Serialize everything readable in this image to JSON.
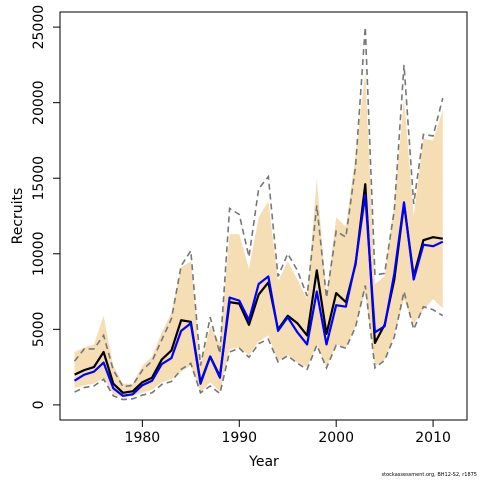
{
  "chart_data": {
    "type": "line",
    "title": "",
    "xlabel": "Year",
    "ylabel": "Recruits",
    "xlim": [
      1971.5,
      2013.5
    ],
    "ylim": [
      -1000,
      26000
    ],
    "x_ticks": [
      1980,
      1990,
      2000,
      2010
    ],
    "y_ticks": [
      0,
      5000,
      10000,
      15000,
      20000,
      25000
    ],
    "grid": false,
    "legend": "none",
    "x": [
      1973,
      1974,
      1975,
      1976,
      1977,
      1978,
      1979,
      1980,
      1981,
      1982,
      1983,
      1984,
      1985,
      1986,
      1987,
      1988,
      1989,
      1990,
      1991,
      1992,
      1993,
      1994,
      1995,
      1996,
      1997,
      1998,
      1999,
      2000,
      2001,
      2002,
      2003,
      2004,
      2005,
      2006,
      2007,
      2008,
      2009,
      2010,
      2011
    ],
    "series": [
      {
        "role": "band",
        "color": "#f5deb3",
        "lower": [
          1100,
          1300,
          1400,
          1800,
          700,
          500,
          600,
          800,
          1000,
          1500,
          1700,
          2200,
          2600,
          800,
          1500,
          900,
          3700,
          3800,
          3300,
          4200,
          4600,
          2900,
          3300,
          2800,
          2500,
          4000,
          2500,
          4000,
          3800,
          5200,
          7500,
          2600,
          3000,
          4600,
          7000,
          5300,
          6300,
          7000,
          6400
        ],
        "upper": [
          3500,
          3800,
          4000,
          5900,
          2600,
          1400,
          1400,
          2600,
          3200,
          4800,
          6100,
          9100,
          9500,
          2700,
          5200,
          4100,
          11300,
          11300,
          9000,
          12400,
          13500,
          8200,
          9500,
          8300,
          7000,
          15000,
          7200,
          12400,
          11800,
          16500,
          22000,
          8000,
          8500,
          13300,
          20300,
          12500,
          17600,
          17500,
          19500
        ]
      },
      {
        "role": "ci-lower",
        "color": "#777777",
        "values": [
          850,
          1150,
          1250,
          1700,
          600,
          350,
          400,
          650,
          800,
          1350,
          1550,
          2350,
          2750,
          800,
          1250,
          750,
          3500,
          3750,
          3150,
          4050,
          4350,
          2850,
          3250,
          2750,
          2350,
          3950,
          2450,
          3950,
          3750,
          5150,
          7900,
          2450,
          2950,
          4500,
          7500,
          5000,
          6500,
          6300,
          5900
        ]
      },
      {
        "role": "ci-upper",
        "color": "#777777",
        "values": [
          2900,
          3700,
          3700,
          4600,
          2300,
          1200,
          1300,
          2300,
          2900,
          4300,
          5700,
          9200,
          10200,
          2600,
          5800,
          3400,
          13000,
          12600,
          9800,
          14300,
          15100,
          8500,
          10000,
          8900,
          7200,
          13200,
          7100,
          11500,
          11100,
          15800,
          25000,
          8600,
          8700,
          12900,
          22500,
          13300,
          17900,
          17800,
          20300
        ]
      },
      {
        "role": "central",
        "color": "#000000",
        "values": [
          2000,
          2300,
          2500,
          3500,
          1400,
          800,
          900,
          1500,
          1800,
          3000,
          3600,
          5600,
          5500,
          1500,
          3200,
          1900,
          6800,
          6700,
          5300,
          7300,
          8100,
          5000,
          5900,
          5400,
          4600,
          8900,
          4700,
          7400,
          6800,
          9300,
          14600,
          4100,
          5300,
          8300,
          13300,
          8500,
          10900,
          11100,
          11000
        ]
      },
      {
        "role": "central",
        "color": "#0000ff",
        "values": [
          1600,
          2000,
          2200,
          2800,
          1100,
          600,
          700,
          1300,
          1600,
          2700,
          3100,
          4900,
          5400,
          1400,
          3200,
          1800,
          7100,
          6900,
          5600,
          8000,
          8500,
          4900,
          5800,
          4800,
          4000,
          7500,
          4000,
          6600,
          6500,
          9400,
          13900,
          4800,
          5200,
          8700,
          13400,
          8300,
          10600,
          10500,
          10800
        ]
      }
    ]
  },
  "footnote": "stockassessment.org, BH12-S2, r1875"
}
